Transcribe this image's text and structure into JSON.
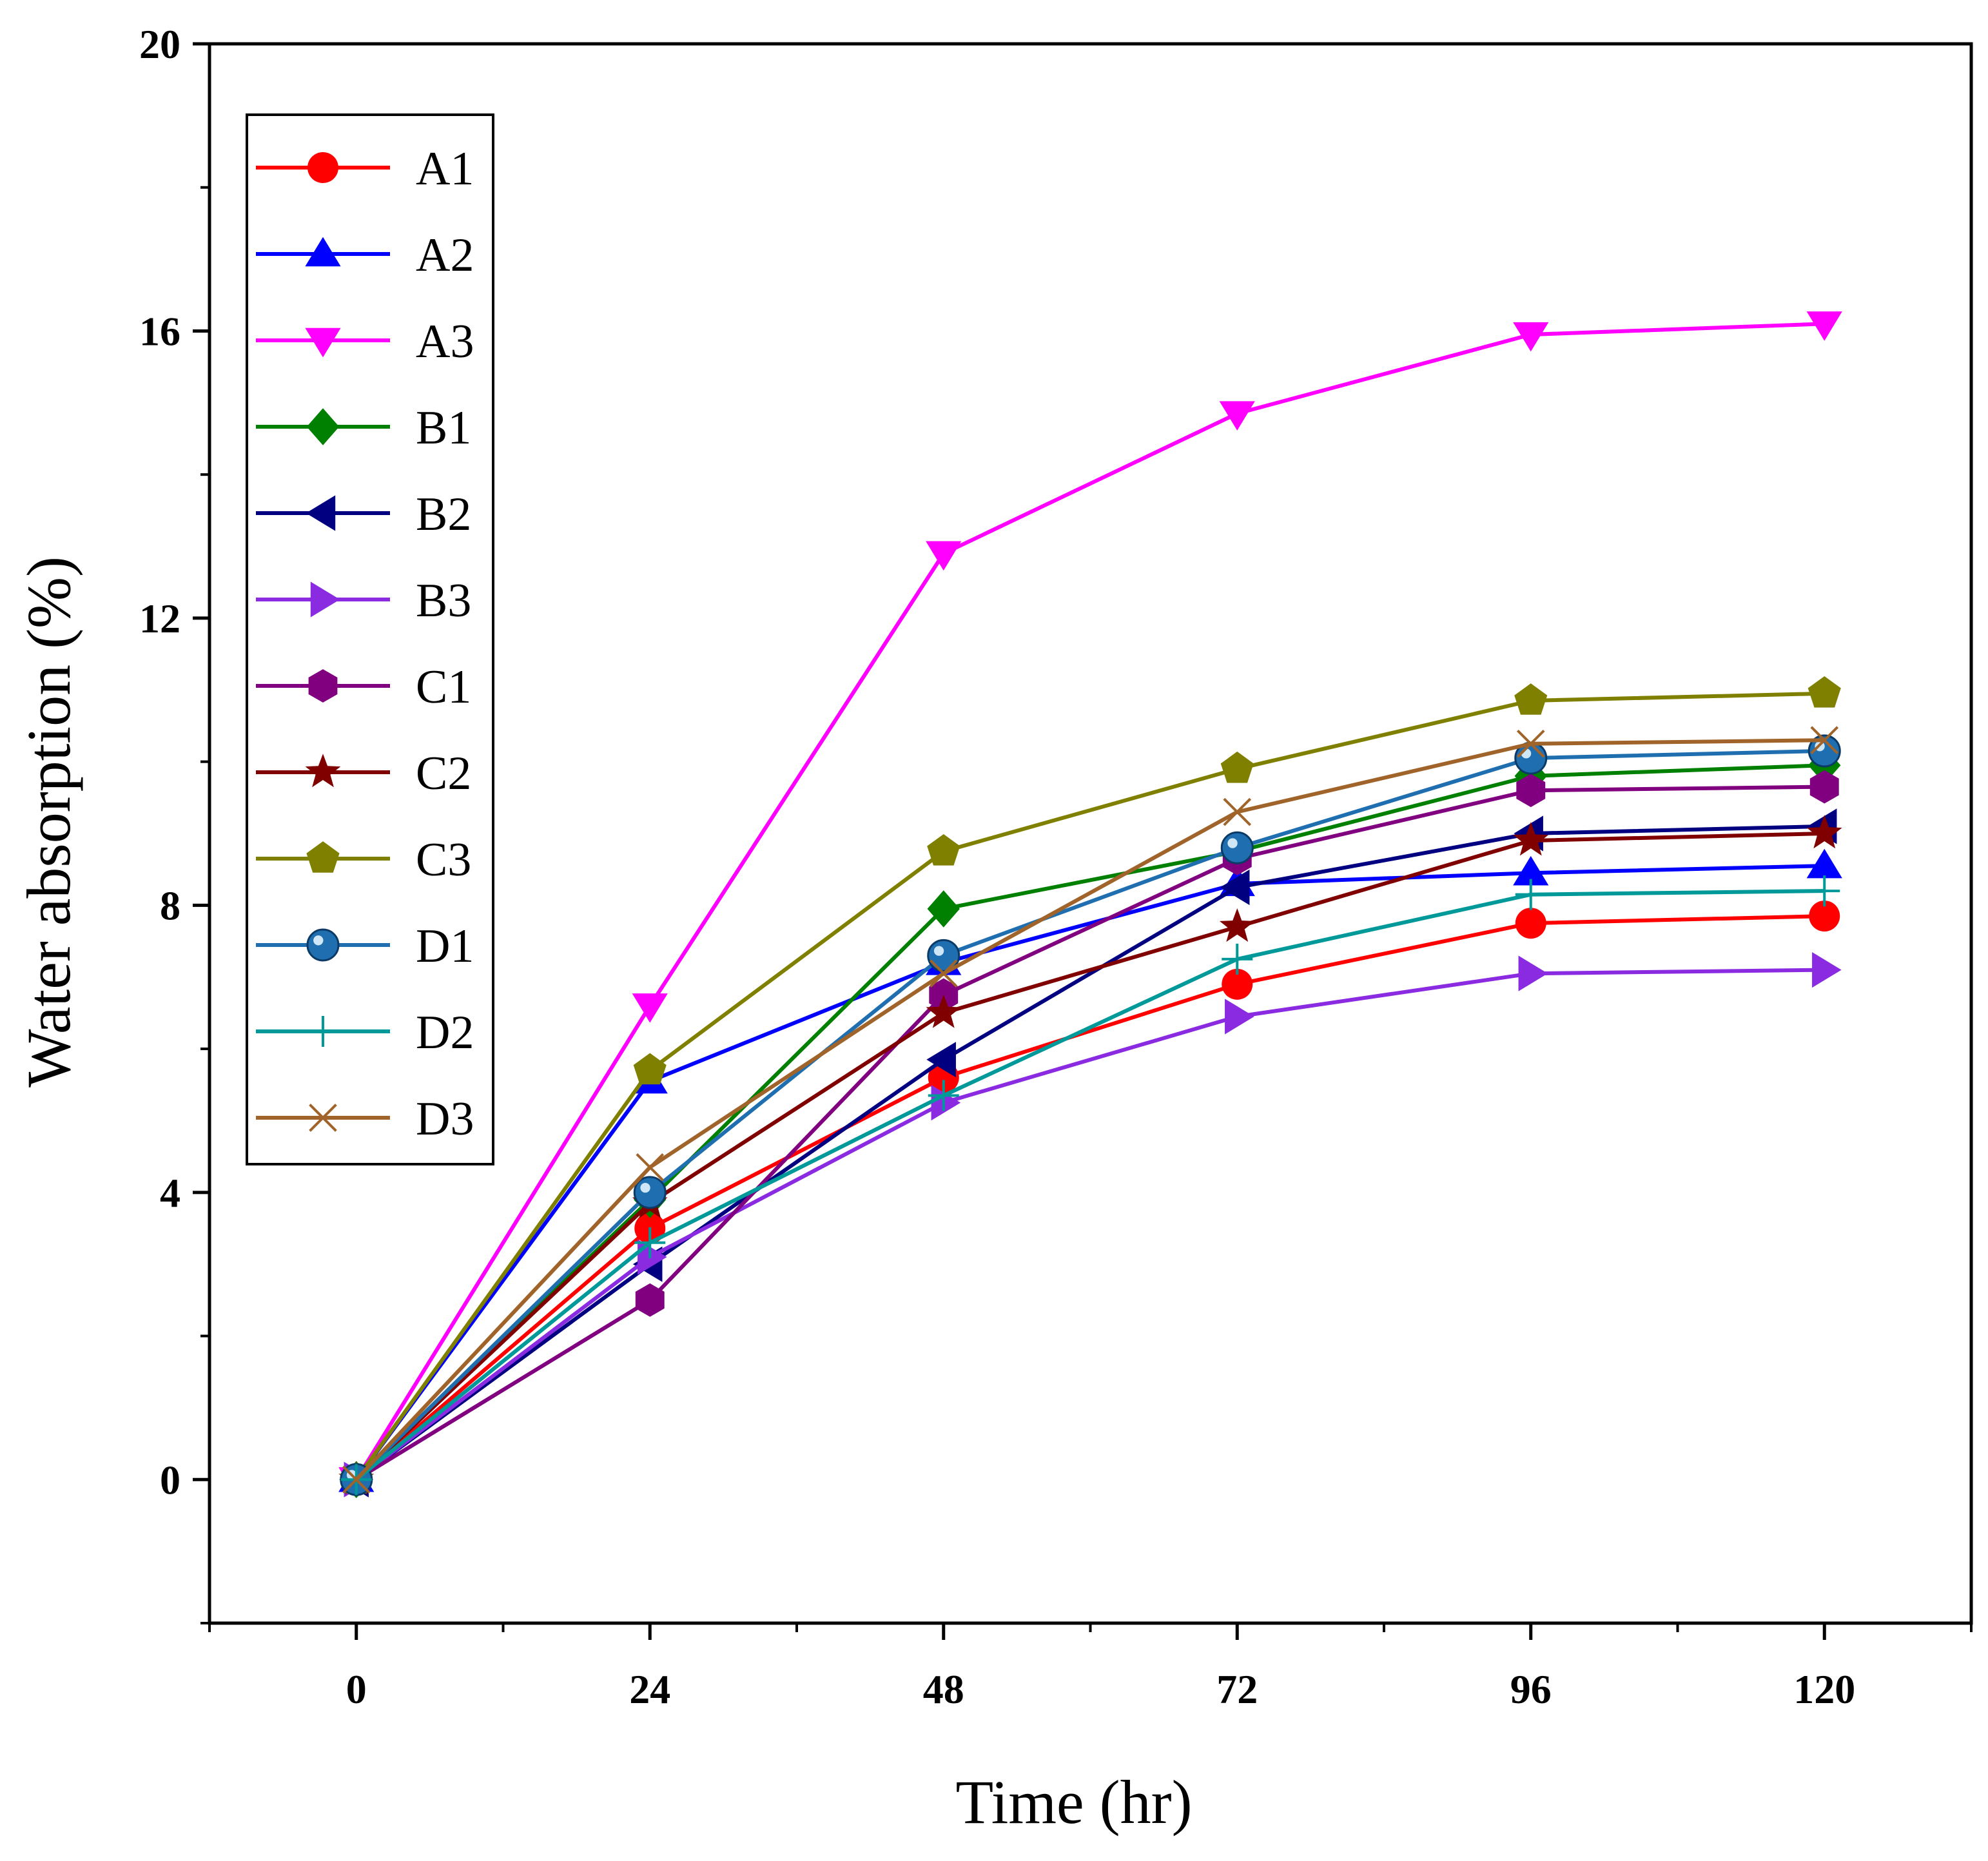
{
  "chart_data": {
    "type": "line",
    "title": "",
    "xlabel": "Time (hr)",
    "ylabel": "Water absorption (%)",
    "xlim": [
      -12,
      132
    ],
    "ylim": [
      -2,
      20
    ],
    "xticks": [
      0,
      24,
      48,
      72,
      96,
      120
    ],
    "yticks": [
      0,
      4,
      8,
      12,
      16,
      20
    ],
    "x": [
      0,
      24,
      48,
      72,
      96,
      120
    ],
    "legend_position": "top-left",
    "grid": false,
    "series": [
      {
        "name": "A1",
        "color": "#ff0000",
        "marker": "circle",
        "values": [
          0,
          3.5,
          5.6,
          6.9,
          7.75,
          7.85
        ]
      },
      {
        "name": "A2",
        "color": "#0000ff",
        "marker": "triangle-up",
        "values": [
          0,
          5.55,
          7.2,
          8.3,
          8.45,
          8.55
        ]
      },
      {
        "name": "A3",
        "color": "#ff00ff",
        "marker": "triangle-down",
        "values": [
          0,
          6.6,
          12.9,
          14.85,
          15.95,
          16.1
        ]
      },
      {
        "name": "B1",
        "color": "#008000",
        "marker": "diamond",
        "values": [
          0,
          3.9,
          7.95,
          8.75,
          9.8,
          9.95
        ]
      },
      {
        "name": "B2",
        "color": "#000080",
        "marker": "triangle-left",
        "values": [
          0,
          3.0,
          5.85,
          8.25,
          9.0,
          9.1
        ]
      },
      {
        "name": "B3",
        "color": "#8a2be2",
        "marker": "triangle-right",
        "values": [
          0,
          3.1,
          5.25,
          6.45,
          7.05,
          7.1
        ]
      },
      {
        "name": "C1",
        "color": "#800080",
        "marker": "hexagon",
        "values": [
          0,
          2.5,
          6.75,
          8.65,
          9.6,
          9.65
        ]
      },
      {
        "name": "C2",
        "color": "#800000",
        "marker": "star",
        "values": [
          0,
          3.85,
          6.5,
          7.7,
          8.9,
          9.0
        ]
      },
      {
        "name": "C3",
        "color": "#808000",
        "marker": "pentagon",
        "values": [
          0,
          5.7,
          8.75,
          9.9,
          10.85,
          10.95
        ]
      },
      {
        "name": "D1",
        "color": "#1f6fb0",
        "marker": "sphere",
        "values": [
          0,
          4.0,
          7.3,
          8.8,
          10.05,
          10.15
        ]
      },
      {
        "name": "D2",
        "color": "#009999",
        "marker": "plus",
        "values": [
          0,
          3.3,
          5.35,
          7.25,
          8.15,
          8.2
        ]
      },
      {
        "name": "D3",
        "color": "#a0642a",
        "marker": "x",
        "values": [
          0,
          4.35,
          7.05,
          9.3,
          10.25,
          10.3
        ]
      }
    ]
  }
}
